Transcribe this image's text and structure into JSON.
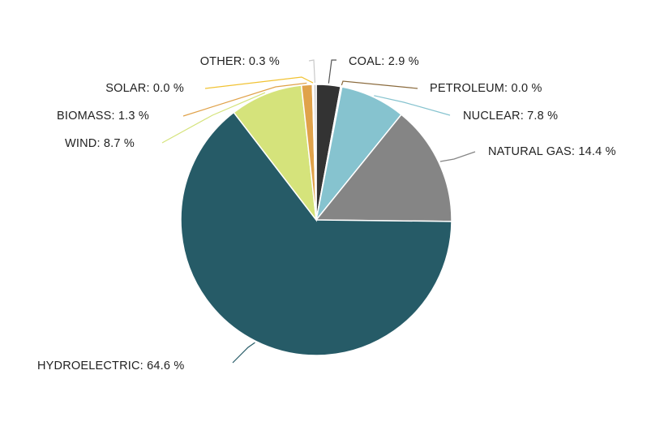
{
  "chart_data": {
    "type": "pie",
    "title": "",
    "slices": [
      {
        "name": "COAL",
        "value": 2.9,
        "label": "COAL: 2.9 %",
        "color": "#333333"
      },
      {
        "name": "PETROLEUM",
        "value": 0.0,
        "label": "PETROLEUM: 0.0 %",
        "color": "#8a6a3c"
      },
      {
        "name": "NUCLEAR",
        "value": 7.8,
        "label": "NUCLEAR: 7.8 %",
        "color": "#86c3cf"
      },
      {
        "name": "NATURAL GAS",
        "value": 14.4,
        "label": "NATURAL GAS: 14.4 %",
        "color": "#858585"
      },
      {
        "name": "HYDROELECTRIC",
        "value": 64.6,
        "label": "HYDROELECTRIC: 64.6 %",
        "color": "#265b67"
      },
      {
        "name": "WIND",
        "value": 8.7,
        "label": "WIND: 8.7 %",
        "color": "#d5e37b"
      },
      {
        "name": "BIOMASS",
        "value": 1.3,
        "label": "BIOMASS: 1.3 %",
        "color": "#e0a24a"
      },
      {
        "name": "SOLAR",
        "value": 0.0,
        "label": "SOLAR: 0.0 %",
        "color": "#f1c232"
      },
      {
        "name": "OTHER",
        "value": 0.3,
        "label": "OTHER: 0.3 %",
        "color": "#c9c9c9"
      }
    ]
  }
}
